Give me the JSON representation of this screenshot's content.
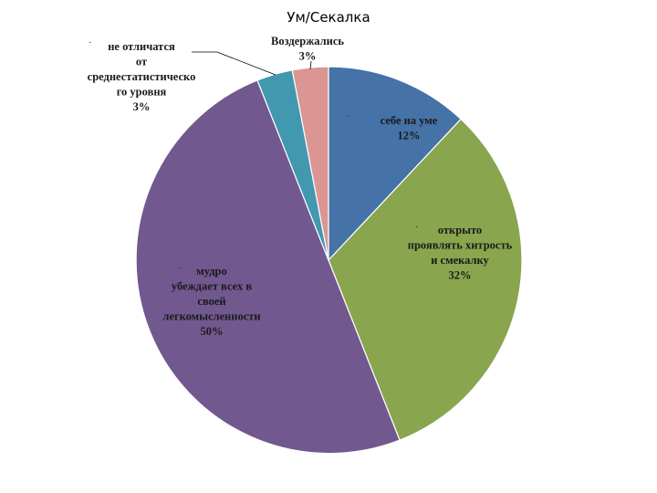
{
  "chart_data": {
    "type": "pie",
    "title": "Ум/Секалка",
    "slices": [
      {
        "label_lines": [
          "себе на уме",
          "12%"
        ],
        "value": 12,
        "color": "#4572A7"
      },
      {
        "label_lines": [
          "открыто",
          "проявлять хитрость",
          "и смекалку",
          "32%"
        ],
        "value": 32,
        "color": "#89A54E"
      },
      {
        "label_lines": [
          "мудро",
          "убеждает всех в",
          "своей",
          "легкомысленности",
          "50%"
        ],
        "value": 50,
        "color": "#71588F"
      },
      {
        "label_lines": [
          "не отличатся",
          "от",
          "среднестатистическо",
          "го уровня",
          "3%"
        ],
        "value": 3,
        "color": "#4198AF"
      },
      {
        "label_lines": [
          "Воздержались",
          "3%"
        ],
        "value": 3,
        "color": "#DB9694"
      }
    ],
    "bullet": "·"
  }
}
